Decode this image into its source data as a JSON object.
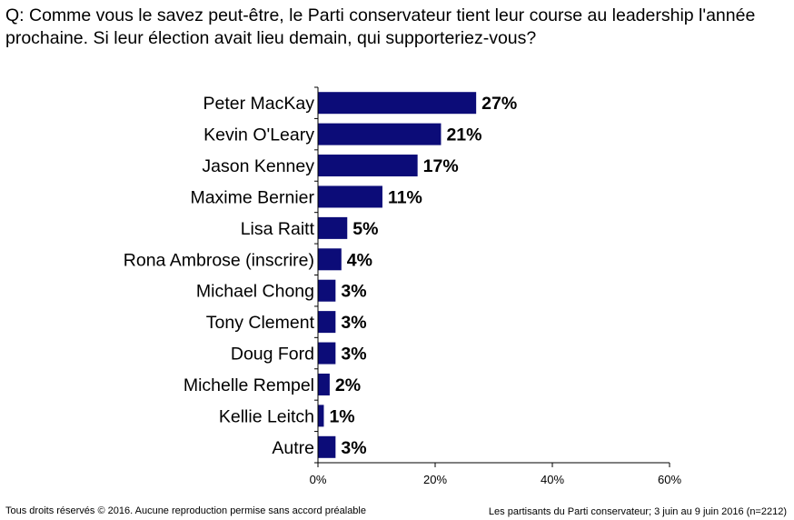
{
  "question": "Q: Comme vous le savez peut-être, le Parti conservateur tient leur course au leadership l'année prochaine. Si leur élection avait lieu demain, qui supporteriez-vous?",
  "footer": {
    "left": "Tous droits réservés © 2016. Aucune reproduction permise sans accord préalable",
    "right": "Les partisants du Parti conservateur; 3 juin au 9 juin 2016 (n=2212)"
  },
  "colors": {
    "bar": "#0c0c78",
    "axis": "#000000"
  },
  "chart_data": {
    "type": "bar",
    "orientation": "horizontal",
    "categories": [
      "Peter MacKay",
      "Kevin O'Leary",
      "Jason Kenney",
      "Maxime Bernier",
      "Lisa Raitt",
      "Rona Ambrose (inscrire)",
      "Michael Chong",
      "Tony Clement",
      "Doug Ford",
      "Michelle Rempel",
      "Kellie Leitch",
      "Autre"
    ],
    "values": [
      27,
      21,
      17,
      11,
      5,
      4,
      3,
      3,
      3,
      2,
      1,
      3
    ],
    "value_labels": [
      "27%",
      "21%",
      "17%",
      "11%",
      "5%",
      "4%",
      "3%",
      "3%",
      "3%",
      "2%",
      "1%",
      "3%"
    ],
    "xlim": [
      0,
      60
    ],
    "xticks": [
      0,
      20,
      40,
      60
    ],
    "xtick_labels": [
      "0%",
      "20%",
      "40%",
      "60%"
    ],
    "grid": false,
    "legend": "none"
  }
}
